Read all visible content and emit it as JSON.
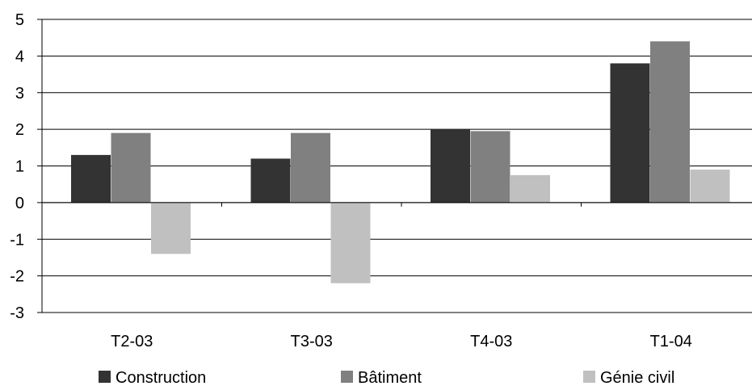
{
  "chart_data": {
    "type": "bar",
    "categories": [
      "T2-03",
      "T3-03",
      "T4-03",
      "T1-04"
    ],
    "series": [
      {
        "name": "Construction",
        "values": [
          1.3,
          1.2,
          2.0,
          3.8
        ],
        "color": "#333333"
      },
      {
        "name": "Bâtiment",
        "values": [
          1.9,
          1.9,
          1.95,
          4.4
        ],
        "color": "#808080"
      },
      {
        "name": "Génie civil",
        "values": [
          -1.4,
          -2.2,
          0.75,
          0.9
        ],
        "color": "#c0c0c0"
      }
    ],
    "ylim": [
      -3,
      5
    ],
    "yticks": [
      -3,
      -2,
      -1,
      0,
      1,
      2,
      3,
      4,
      5
    ],
    "title": "",
    "xlabel": "",
    "ylabel": "",
    "grid": true,
    "legend_position": "bottom"
  }
}
